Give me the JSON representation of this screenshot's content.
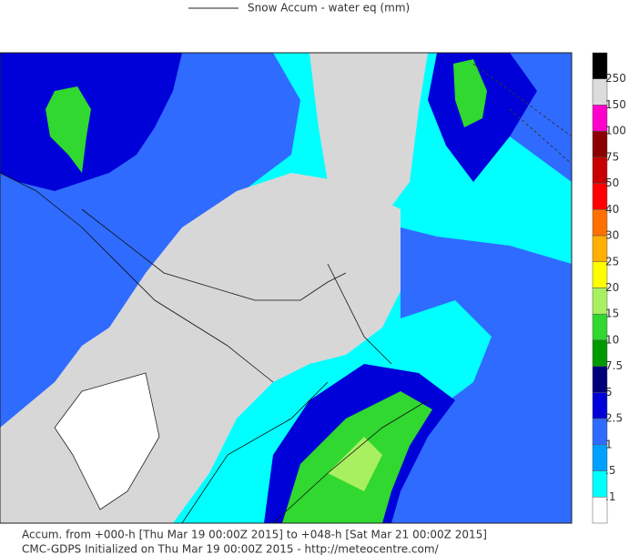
{
  "header": {
    "title": "Snow Accum - water eq (mm)"
  },
  "colorbar": {
    "labels": [
      "250",
      "150",
      "100",
      "75",
      "50",
      "40",
      "30",
      "25",
      "20",
      "15",
      "10",
      "7.5",
      "5",
      "2.5",
      "1",
      ".5",
      ".1"
    ],
    "colors": [
      "#000000",
      "#dcdcdc",
      "#ff00cc",
      "#8b0000",
      "#c80000",
      "#ff0000",
      "#ff7000",
      "#ffb000",
      "#ffff00",
      "#a8f060",
      "#30d830",
      "#009a00",
      "#00007a",
      "#0000d8",
      "#2f6bff",
      "#00a0ff",
      "#00ffff",
      "#ffffff"
    ]
  },
  "footer": {
    "line1": "Accum. from +000-h [Thu Mar 19 00:00Z 2015] to +048-h [Sat Mar 21 00:00Z 2015]",
    "line2": "CMC-GDPS Initialized on Thu Mar 19 00:00Z 2015 - http://meteocentre.com/"
  }
}
